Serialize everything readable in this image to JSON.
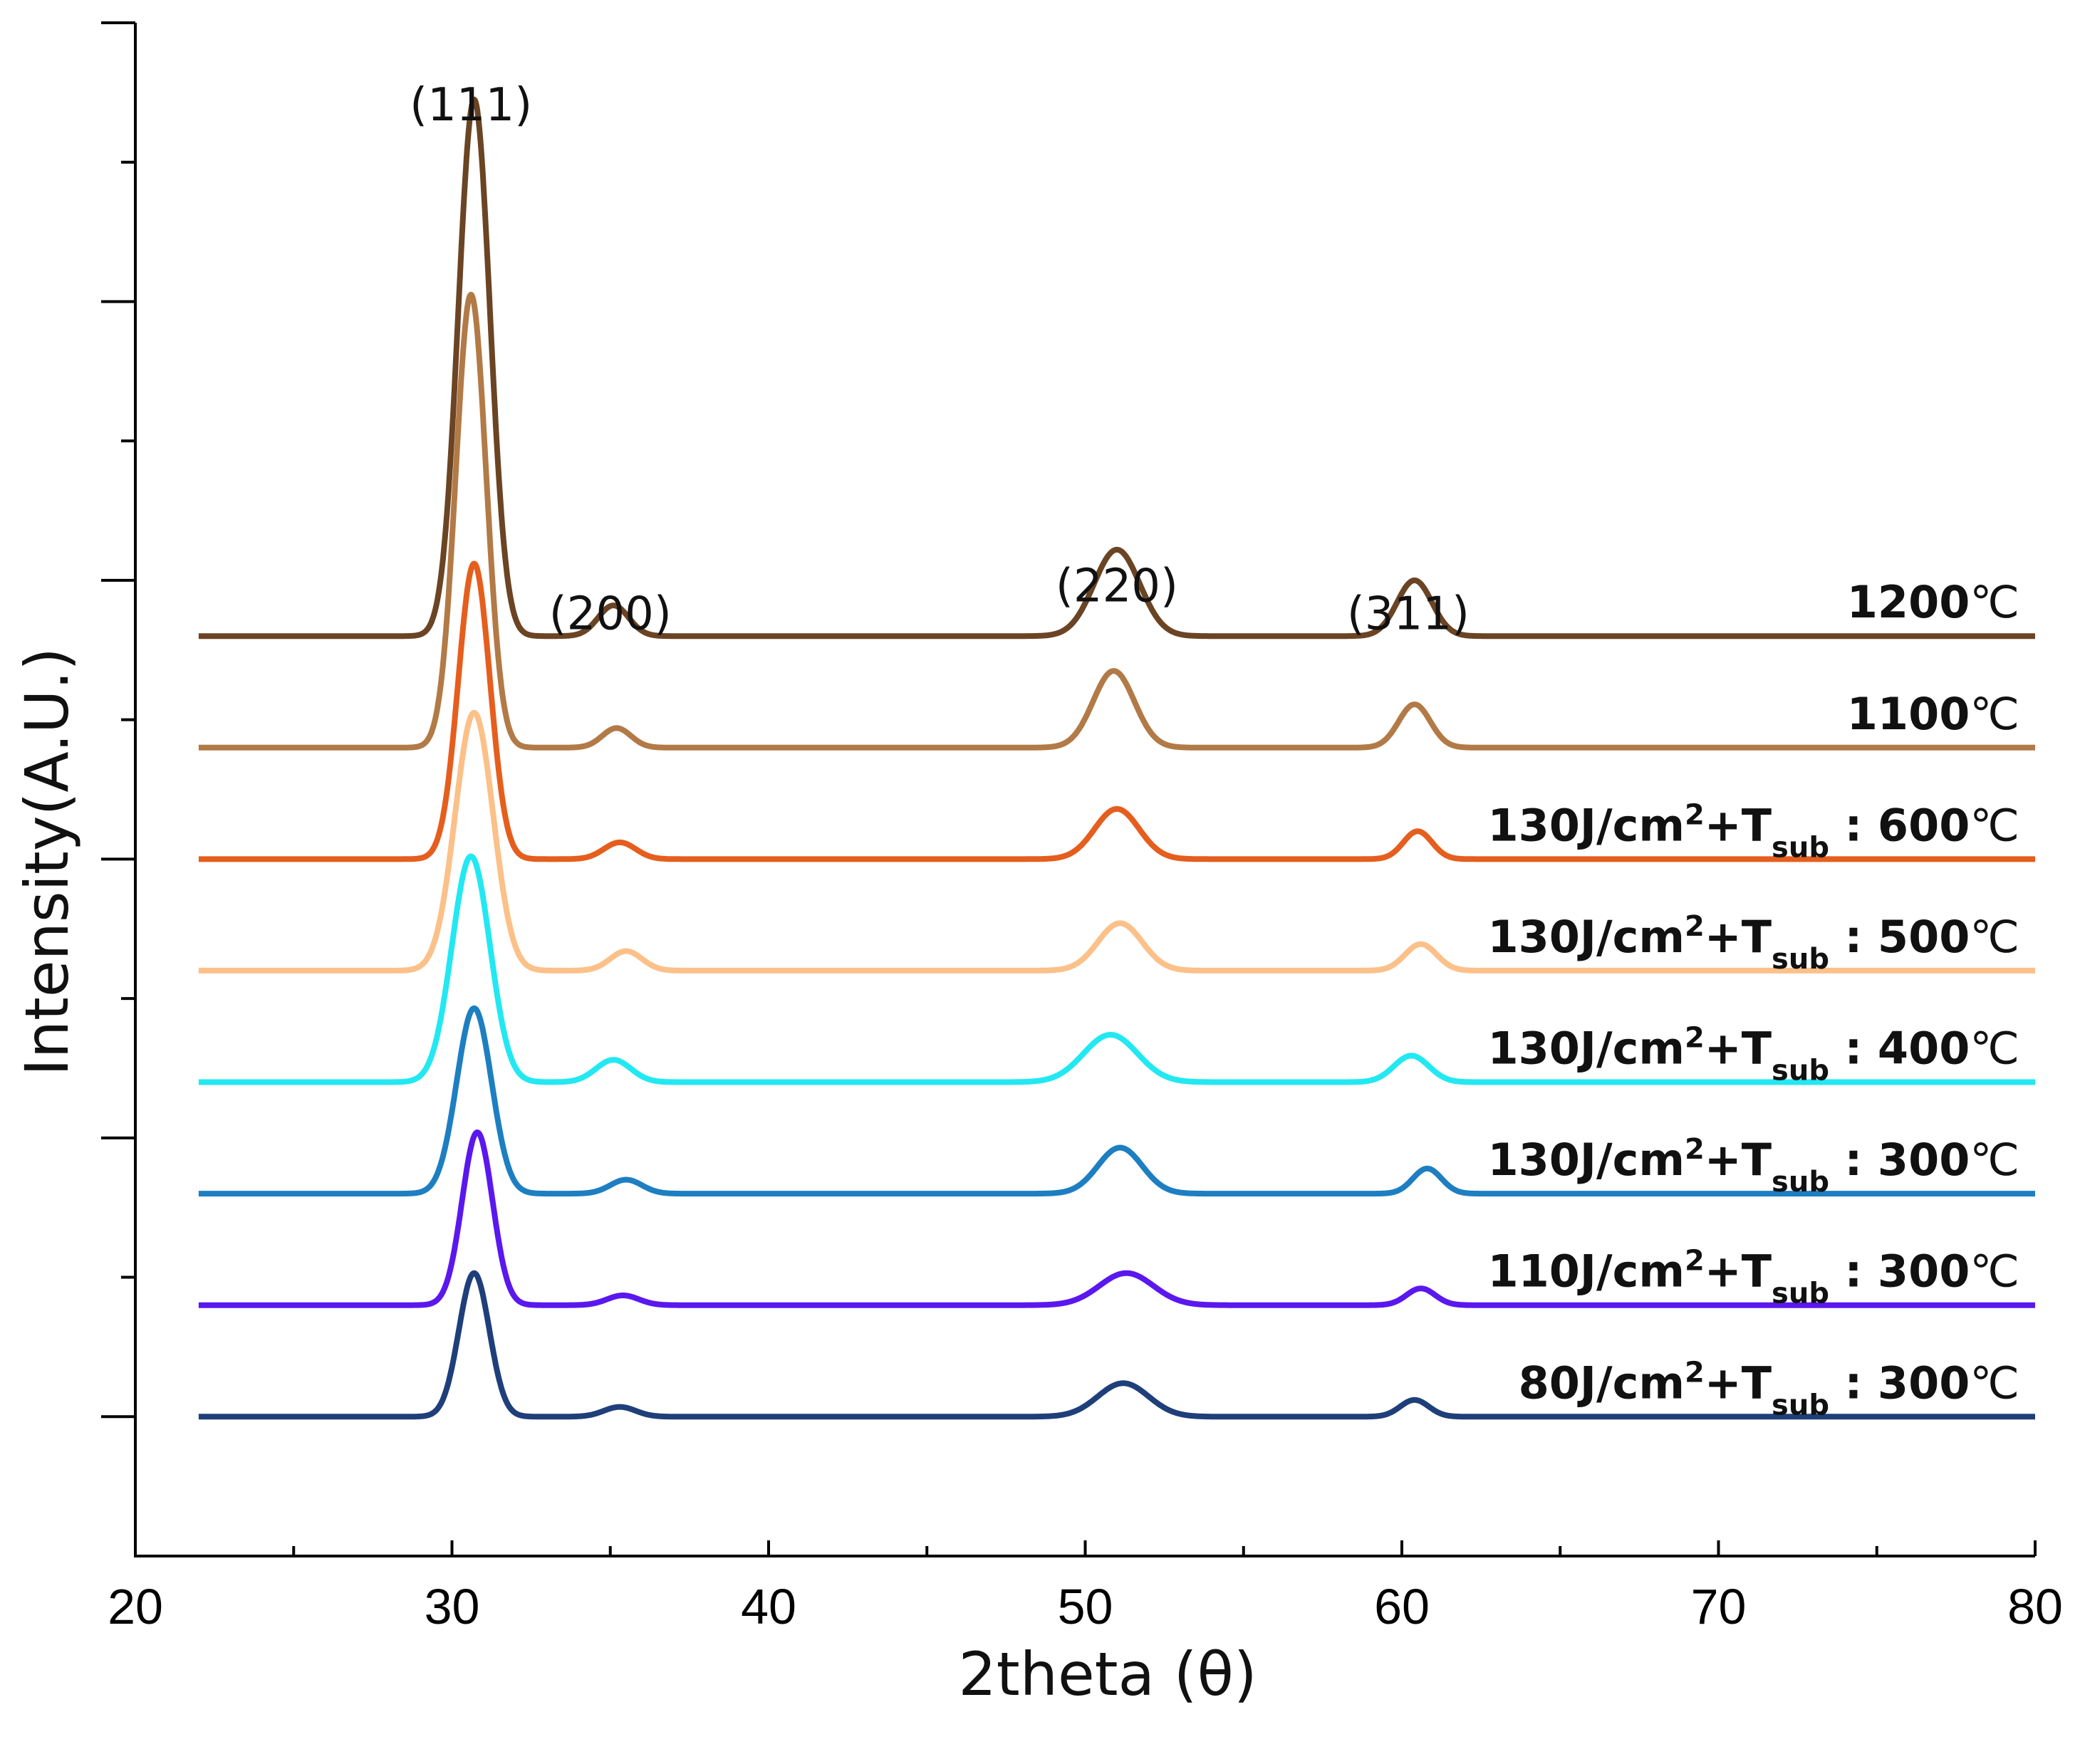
{
  "chart_data": {
    "type": "line",
    "title": "",
    "xlabel": "2theta (θ)",
    "ylabel": "Intensity(A.U.)",
    "xlim": [
      20,
      80
    ],
    "xticks": [
      20,
      30,
      40,
      50,
      60,
      70,
      80
    ],
    "ylim": [
      0,
      11
    ],
    "yticks_labeled": false,
    "grid": false,
    "peak_labels": [
      {
        "text": "(111)",
        "x": 30.6,
        "y": 10.3
      },
      {
        "text": "(200)",
        "x": 35.0,
        "y": 6.65
      },
      {
        "text": "(220)",
        "x": 51.0,
        "y": 6.85
      },
      {
        "text": "(311)",
        "x": 60.2,
        "y": 6.65
      }
    ],
    "series": [
      {
        "name": "80J/cm²+T_sub : 300℃",
        "label_main": "80J/cm",
        "label_sup": "2",
        "label_plus": "+T",
        "label_sub": "sub",
        "label_tail": " : 300",
        "label_unit": "℃",
        "color": "#1f3f7a",
        "baseline": 1.0,
        "peak_center": 30.7,
        "peaks": [
          {
            "center": 30.7,
            "height": 1.03,
            "width": 0.48
          },
          {
            "center": 35.3,
            "height": 0.07,
            "width": 0.5
          },
          {
            "center": 51.2,
            "height": 0.24,
            "width": 0.8
          },
          {
            "center": 60.4,
            "height": 0.12,
            "width": 0.45
          }
        ]
      },
      {
        "name": "110J/cm²+T_sub : 300℃",
        "label_main": "110J/cm",
        "label_sup": "2",
        "label_plus": "+T",
        "label_sub": "sub",
        "label_tail": " : 300",
        "label_unit": "℃",
        "color": "#5a18ee",
        "baseline": 1.8,
        "peak_center": 30.8,
        "peaks": [
          {
            "center": 30.8,
            "height": 1.24,
            "width": 0.48
          },
          {
            "center": 35.4,
            "height": 0.07,
            "width": 0.5
          },
          {
            "center": 51.3,
            "height": 0.23,
            "width": 0.85
          },
          {
            "center": 60.6,
            "height": 0.12,
            "width": 0.45
          }
        ]
      },
      {
        "name": "130J/cm²+T_sub : 300℃",
        "label_main": "130J/cm",
        "label_sup": "2",
        "label_plus": "+T",
        "label_sub": "sub",
        "label_tail": " : 300",
        "label_unit": "℃",
        "color": "#1d7fc2",
        "baseline": 2.6,
        "peak_center": 30.7,
        "peaks": [
          {
            "center": 30.7,
            "height": 1.33,
            "width": 0.55
          },
          {
            "center": 35.5,
            "height": 0.1,
            "width": 0.5
          },
          {
            "center": 51.1,
            "height": 0.33,
            "width": 0.7
          },
          {
            "center": 60.8,
            "height": 0.18,
            "width": 0.45
          }
        ]
      },
      {
        "name": "130J/cm²+T_sub : 400℃",
        "label_main": "130J/cm",
        "label_sup": "2",
        "label_plus": "+T",
        "label_sub": "sub",
        "label_tail": " : 400",
        "label_unit": "℃",
        "color": "#22e8f2",
        "baseline": 3.4,
        "peak_center": 30.6,
        "peaks": [
          {
            "center": 30.6,
            "height": 1.62,
            "width": 0.6
          },
          {
            "center": 35.1,
            "height": 0.16,
            "width": 0.55
          },
          {
            "center": 50.8,
            "height": 0.34,
            "width": 0.85
          },
          {
            "center": 60.3,
            "height": 0.19,
            "width": 0.55
          }
        ]
      },
      {
        "name": "130J/cm²+T_sub : 500℃",
        "label_main": "130J/cm",
        "label_sup": "2",
        "label_plus": "+T",
        "label_sub": "sub",
        "label_tail": " : 500",
        "label_unit": "℃",
        "color": "#fcc089",
        "baseline": 4.2,
        "peak_center": 30.7,
        "peaks": [
          {
            "center": 30.7,
            "height": 1.85,
            "width": 0.6
          },
          {
            "center": 35.5,
            "height": 0.14,
            "width": 0.5
          },
          {
            "center": 51.1,
            "height": 0.34,
            "width": 0.7
          },
          {
            "center": 60.6,
            "height": 0.19,
            "width": 0.5
          }
        ]
      },
      {
        "name": "130J/cm²+T_sub : 600℃",
        "label_main": "130J/cm",
        "label_sup": "2",
        "label_plus": "+T",
        "label_sub": "sub",
        "label_tail": " : 600",
        "label_unit": "℃",
        "color": "#e55e1e",
        "baseline": 5.0,
        "peak_center": 30.7,
        "peaks": [
          {
            "center": 30.7,
            "height": 2.12,
            "width": 0.5
          },
          {
            "center": 35.3,
            "height": 0.12,
            "width": 0.5
          },
          {
            "center": 51.0,
            "height": 0.36,
            "width": 0.7
          },
          {
            "center": 60.5,
            "height": 0.2,
            "width": 0.45
          }
        ]
      },
      {
        "name": "1100℃",
        "label_main": "1100",
        "label_sup": "",
        "label_plus": "",
        "label_sub": "",
        "label_tail": "",
        "label_unit": "℃",
        "color": "#b27a46",
        "baseline": 5.8,
        "peak_center": 30.6,
        "peaks": [
          {
            "center": 30.6,
            "height": 3.25,
            "width": 0.48
          },
          {
            "center": 35.2,
            "height": 0.14,
            "width": 0.45
          },
          {
            "center": 50.9,
            "height": 0.55,
            "width": 0.65
          },
          {
            "center": 60.4,
            "height": 0.31,
            "width": 0.5
          }
        ]
      },
      {
        "name": "1200℃",
        "label_main": "1200",
        "label_sup": "",
        "label_plus": "",
        "label_sub": "",
        "label_tail": "",
        "label_unit": "℃",
        "color": "#6b4424",
        "baseline": 6.6,
        "peak_center": 30.7,
        "peaks": [
          {
            "center": 30.7,
            "height": 3.85,
            "width": 0.5
          },
          {
            "center": 35.1,
            "height": 0.22,
            "width": 0.48
          },
          {
            "center": 51.0,
            "height": 0.62,
            "width": 0.72
          },
          {
            "center": 60.4,
            "height": 0.4,
            "width": 0.55
          }
        ]
      }
    ]
  }
}
